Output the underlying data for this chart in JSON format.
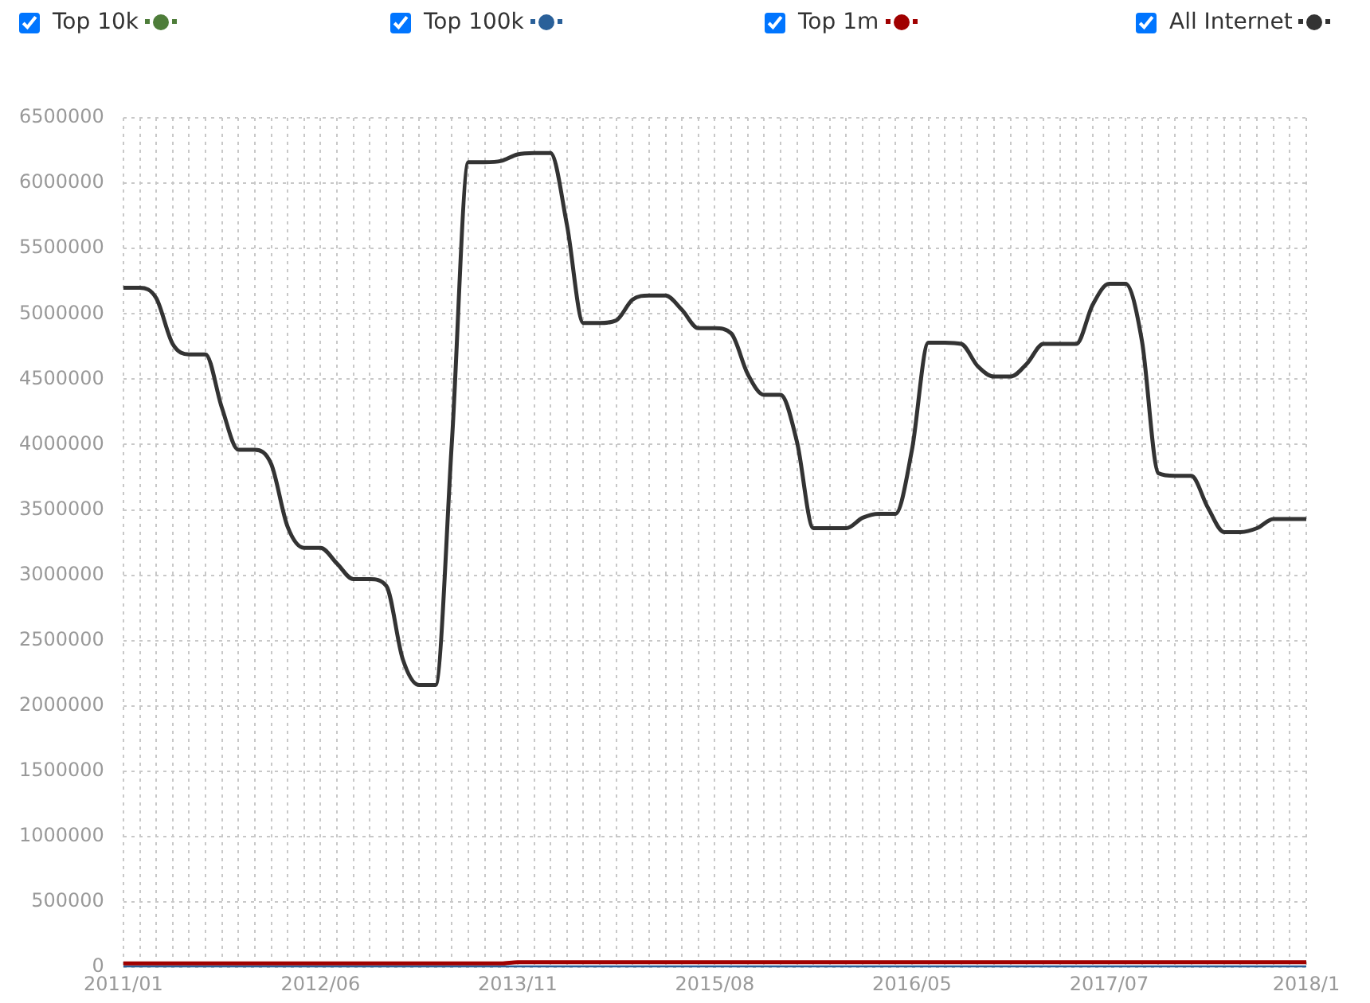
{
  "chart_data": {
    "type": "line",
    "categories": [
      "2011/01",
      null,
      null,
      null,
      null,
      null,
      null,
      null,
      null,
      null,
      null,
      null,
      "2012/06",
      null,
      null,
      null,
      null,
      null,
      null,
      null,
      null,
      null,
      null,
      null,
      "2013/11",
      null,
      null,
      null,
      null,
      null,
      null,
      null,
      null,
      null,
      null,
      null,
      "2015/08",
      null,
      null,
      null,
      null,
      null,
      null,
      null,
      null,
      null,
      null,
      null,
      "2016/05",
      null,
      null,
      null,
      null,
      null,
      null,
      null,
      null,
      null,
      null,
      null,
      "2017/07",
      null,
      null,
      null,
      null,
      null,
      null,
      null,
      null,
      null,
      null,
      null,
      "2018/1"
    ],
    "series": [
      {
        "name": "Top 10k",
        "color": "#4e7d3a",
        "values": [
          null,
          null,
          null,
          null,
          null,
          null,
          null,
          null,
          null,
          null,
          null,
          null,
          null,
          null,
          null,
          null,
          null,
          null,
          null,
          null,
          null,
          null,
          null,
          null,
          null,
          null,
          null,
          null,
          null,
          null,
          null,
          null,
          null,
          null,
          null,
          null,
          null,
          null,
          null,
          null,
          null,
          null,
          null,
          null,
          null,
          null,
          null,
          null,
          null,
          null,
          null,
          null,
          null,
          null,
          null,
          null,
          null,
          null,
          null,
          null,
          null,
          null,
          null,
          null,
          null,
          null,
          null,
          null,
          null,
          null,
          null,
          null,
          null
        ]
      },
      {
        "name": "Top 100k",
        "color": "#2a6099",
        "values": [
          0,
          0,
          0,
          0,
          0,
          0,
          0,
          0,
          0,
          0,
          0,
          0,
          0,
          0,
          0,
          0,
          0,
          0,
          0,
          0,
          0,
          0,
          0,
          0,
          0,
          0,
          0,
          0,
          0,
          0,
          0,
          0,
          0,
          0,
          0,
          0,
          0,
          0,
          0,
          0,
          0,
          0,
          0,
          0,
          0,
          0,
          0,
          0,
          0,
          0,
          0,
          0,
          0,
          0,
          0,
          0,
          0,
          0,
          0,
          0,
          0,
          0,
          0,
          0,
          0,
          0,
          0,
          0,
          0,
          0,
          0,
          0,
          0
        ]
      },
      {
        "name": "Top 1m",
        "color": "#a00000",
        "values": [
          30000,
          30000,
          30000,
          30000,
          30000,
          30000,
          30000,
          30000,
          30000,
          30000,
          30000,
          30000,
          30000,
          30000,
          30000,
          30000,
          30000,
          30000,
          30000,
          30000,
          30000,
          30000,
          30000,
          30000,
          40000,
          40000,
          40000,
          40000,
          40000,
          40000,
          40000,
          40000,
          40000,
          40000,
          40000,
          40000,
          40000,
          40000,
          40000,
          40000,
          40000,
          40000,
          40000,
          40000,
          40000,
          40000,
          40000,
          40000,
          40000,
          40000,
          40000,
          40000,
          40000,
          40000,
          40000,
          40000,
          40000,
          40000,
          40000,
          40000,
          40000,
          40000,
          40000,
          40000,
          40000,
          40000,
          40000,
          40000,
          40000,
          40000,
          40000,
          40000,
          40000
        ]
      },
      {
        "name": "All Internet",
        "color": "#333333",
        "values": [
          5200000,
          5200000,
          5120000,
          4770000,
          4690000,
          4690000,
          4280000,
          3960000,
          3960000,
          3850000,
          3370000,
          3210000,
          3210000,
          3090000,
          2970000,
          2970000,
          2920000,
          2360000,
          2160000,
          2160000,
          4030000,
          6160000,
          6160000,
          6170000,
          6220000,
          6230000,
          6230000,
          5680000,
          4930000,
          4930000,
          4950000,
          5110000,
          5140000,
          5140000,
          5030000,
          4890000,
          4890000,
          4850000,
          4540000,
          4380000,
          4380000,
          4020000,
          3360000,
          3360000,
          3360000,
          3440000,
          3470000,
          3470000,
          3960000,
          4780000,
          4780000,
          4770000,
          4600000,
          4520000,
          4520000,
          4620000,
          4770000,
          4770000,
          4770000,
          5070000,
          5230000,
          5230000,
          4790000,
          3780000,
          3760000,
          3760000,
          3520000,
          3330000,
          3330000,
          3360000,
          3430000,
          3430000,
          3430000
        ]
      }
    ],
    "ylim": [
      0,
      6500000
    ],
    "yticks": [
      0,
      500000,
      1000000,
      1500000,
      2000000,
      2500000,
      3000000,
      3500000,
      4000000,
      4500000,
      5000000,
      5500000,
      6000000,
      6500000
    ],
    "grid": true,
    "legend": "top",
    "marker": "none",
    "line_style": "solid"
  }
}
